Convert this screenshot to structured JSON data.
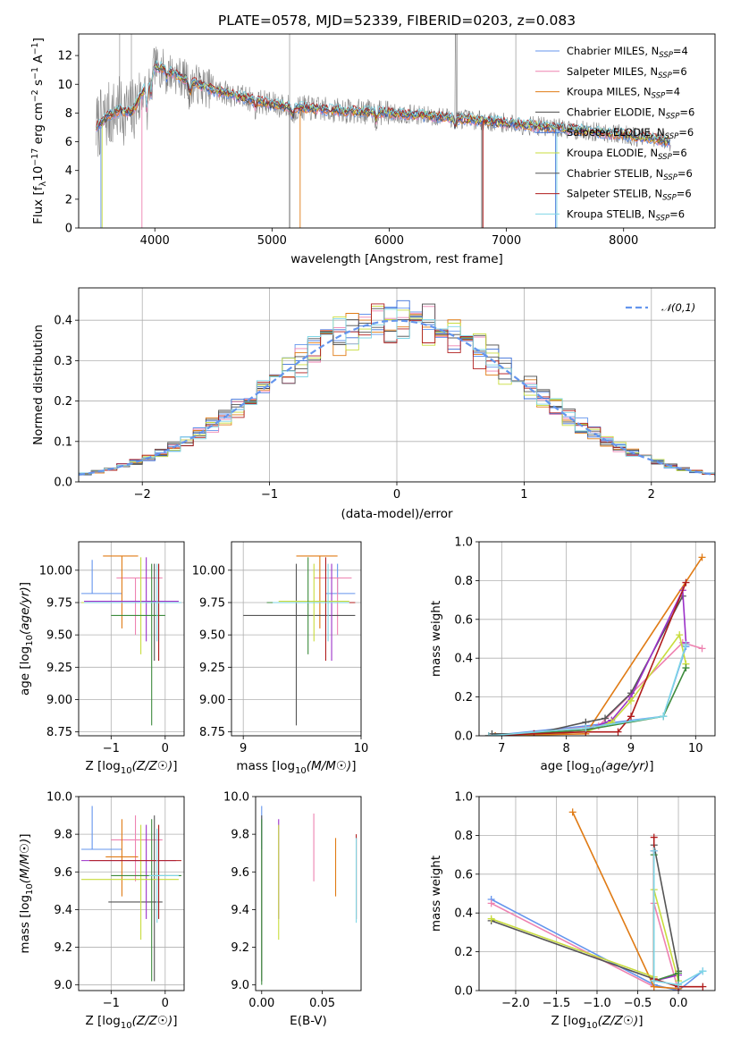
{
  "colors": {
    "series": [
      "#6495ed",
      "#ee82b0",
      "#e07b15",
      "#4a4a4a",
      "#3a6fd8",
      "#c8dc3c",
      "#555555",
      "#b01c1c",
      "#7fd6e6"
    ],
    "mcmc": [
      "#6495ed",
      "#ee82b0",
      "#e07b15",
      "#555555",
      "#9b30c8",
      "#c8dc3c",
      "#3d8b3d",
      "#b01c1c",
      "#7fd6e6"
    ],
    "data_spectrum": "#808080",
    "normal_curve": "#6495ed",
    "grid": "#b0b0b0"
  },
  "chart_data": [
    {
      "id": "spectrum",
      "type": "line",
      "title": "PLATE=0578, MJD=52339, FIBERID=0203, z=0.083",
      "xlabel": "wavelength [Angstrom, rest frame]",
      "ylabel_parts": [
        "Flux [f",
        "λ",
        "10",
        "−17",
        " erg cm",
        "−2",
        " s",
        "−1",
        " A",
        "−1",
        "]"
      ],
      "xlim": [
        3350,
        8780
      ],
      "ylim": [
        0,
        13.5
      ],
      "xticks": [
        4000,
        5000,
        6000,
        7000,
        8000
      ],
      "yticks": [
        0,
        2,
        4,
        6,
        8,
        10,
        12
      ],
      "grid": false,
      "legend_position": "top-right",
      "continuum_knots": {
        "x": [
          3500,
          3600,
          3700,
          3800,
          3900,
          4000,
          4100,
          4300,
          4500,
          4800,
          5000,
          5200,
          5500,
          6000,
          6500,
          7000,
          7500,
          8000,
          8400
        ],
        "y": [
          7.0,
          7.8,
          8.2,
          8.0,
          9.5,
          11.3,
          11.0,
          10.2,
          9.6,
          9.0,
          8.6,
          8.4,
          8.2,
          8.0,
          7.7,
          7.3,
          6.9,
          6.5,
          6.0
        ]
      },
      "series": [
        {
          "name": "Chabrier MILES",
          "nssp": "4"
        },
        {
          "name": "Salpeter MILES",
          "nssp": "6"
        },
        {
          "name": "Kroupa MILES",
          "nssp": "4"
        },
        {
          "name": "Chabrier ELODIE",
          "nssp": "6"
        },
        {
          "name": "Salpeter ELODIE",
          "nssp": "6"
        },
        {
          "name": "Kroupa ELODIE",
          "nssp": "6"
        },
        {
          "name": "Chabrier STELIB",
          "nssp": "6"
        },
        {
          "name": "Salpeter STELIB",
          "nssp": "6"
        },
        {
          "name": "Kroupa STELIB",
          "nssp": "6"
        }
      ],
      "legend_sub": "SSP"
    },
    {
      "id": "residual-hist",
      "type": "bar",
      "xlabel": "(data-model)/error",
      "ylabel": "Normed distribution",
      "xlim": [
        -2.5,
        2.5
      ],
      "ylim": [
        0,
        0.48
      ],
      "xticks": [
        -2,
        -1,
        0,
        1,
        2
      ],
      "yticks": [
        0.0,
        0.1,
        0.2,
        0.3,
        0.4
      ],
      "grid": true,
      "bin_width": 0.1,
      "legend": "N(0,1)",
      "legend_position": "top-right"
    },
    {
      "id": "age-vs-z",
      "type": "scatter",
      "xlabel": "Z [log10(Z/Z☉)]",
      "ylabel": "age  [log10(age/yr)]",
      "xlim": [
        -1.6,
        0.35
      ],
      "ylim": [
        8.72,
        10.22
      ],
      "xticks": [
        -1,
        0
      ],
      "yticks": [
        8.75,
        9.0,
        9.25,
        9.5,
        9.75,
        10.0
      ],
      "grid": true,
      "errorbars": [
        {
          "x": -1.35,
          "y": 9.82,
          "xl": -1.55,
          "xh": -0.8,
          "yl": 9.82,
          "yh": 10.08
        },
        {
          "x": -0.55,
          "y": 9.94,
          "xl": -0.9,
          "xh": -0.05,
          "yl": 9.5,
          "yh": 9.94
        },
        {
          "x": -0.8,
          "y": 10.11,
          "xl": -1.15,
          "xh": -0.5,
          "yl": 9.55,
          "yh": 10.11
        },
        {
          "x": -0.2,
          "y": 9.75,
          "xl": -1.5,
          "xh": 0.2,
          "yl": 9.3,
          "yh": 10.05
        },
        {
          "x": -0.35,
          "y": 9.76,
          "xl": -1.5,
          "xh": 0.25,
          "yl": 9.45,
          "yh": 10.1
        },
        {
          "x": -0.45,
          "y": 9.75,
          "xl": -1.55,
          "xh": 0.3,
          "yl": 9.35,
          "yh": 10.1
        },
        {
          "x": -0.25,
          "y": 9.65,
          "xl": -1.0,
          "xh": 0.0,
          "yl": 8.8,
          "yh": 10.05
        },
        {
          "x": -0.12,
          "y": 9.75,
          "xl": -1.4,
          "xh": 0.3,
          "yl": 9.3,
          "yh": 10.05
        },
        {
          "x": -0.15,
          "y": 9.75,
          "xl": -1.5,
          "xh": 0.3,
          "yl": 9.45,
          "yh": 10.05
        }
      ]
    },
    {
      "id": "age-vs-mass",
      "type": "scatter",
      "xlabel": "mass [log10(M/M☉)]",
      "xlim": [
        8.9,
        10.0
      ],
      "ylim": [
        8.72,
        10.22
      ],
      "xticks": [
        9,
        10
      ],
      "yticks": [
        8.75,
        9.0,
        9.25,
        9.5,
        9.75,
        10.0
      ],
      "grid": true,
      "errorbars": [
        {
          "x": 9.8,
          "y": 9.82,
          "xl": 9.7,
          "xh": 9.95,
          "yl": 9.82,
          "yh": 10.05
        },
        {
          "x": 9.8,
          "y": 9.94,
          "xl": 9.6,
          "xh": 9.92,
          "yl": 9.5,
          "yh": 9.94
        },
        {
          "x": 9.65,
          "y": 10.11,
          "xl": 9.45,
          "xh": 9.8,
          "yl": 9.55,
          "yh": 10.11
        },
        {
          "x": 9.45,
          "y": 9.65,
          "xl": 9.0,
          "xh": 9.95,
          "yl": 8.8,
          "yh": 10.05
        },
        {
          "x": 9.75,
          "y": 9.75,
          "xl": 9.2,
          "xh": 9.85,
          "yl": 9.3,
          "yh": 10.05
        },
        {
          "x": 9.6,
          "y": 9.76,
          "xl": 9.3,
          "xh": 9.9,
          "yl": 9.45,
          "yh": 10.05
        },
        {
          "x": 9.55,
          "y": 9.75,
          "xl": 9.2,
          "xh": 9.9,
          "yl": 9.35,
          "yh": 10.1
        },
        {
          "x": 9.7,
          "y": 9.75,
          "xl": 9.3,
          "xh": 9.95,
          "yl": 9.3,
          "yh": 10.1
        },
        {
          "x": 9.72,
          "y": 9.75,
          "xl": 9.25,
          "xh": 9.9,
          "yl": 9.45,
          "yh": 10.05
        }
      ]
    },
    {
      "id": "massweight-vs-age",
      "type": "line",
      "xlabel": "age  [log10(age/yr)]",
      "ylabel": "mass weight",
      "xlim": [
        6.65,
        10.3
      ],
      "ylim": [
        0,
        1.0
      ],
      "xticks": [
        7,
        8,
        9,
        10
      ],
      "yticks": [
        0.0,
        0.2,
        0.4,
        0.6,
        0.8,
        1.0
      ],
      "grid": true,
      "series": [
        {
          "x": [
            6.8,
            8.3,
            9.5,
            9.85
          ],
          "y": [
            0.0,
            0.05,
            0.1,
            0.46
          ]
        },
        {
          "x": [
            6.9,
            8.5,
            9.8,
            10.1
          ],
          "y": [
            0.0,
            0.05,
            0.48,
            0.45
          ]
        },
        {
          "x": [
            6.9,
            8.3,
            10.1
          ],
          "y": [
            0.0,
            0.01,
            0.92
          ]
        },
        {
          "x": [
            6.85,
            7.5,
            8.3,
            8.6,
            9.0,
            9.8
          ],
          "y": [
            0.01,
            0.01,
            0.07,
            0.09,
            0.22,
            0.72
          ]
        },
        {
          "x": [
            6.8,
            7.5,
            8.3,
            8.7,
            9.0,
            9.8,
            9.85
          ],
          "y": [
            0.0,
            0.01,
            0.03,
            0.08,
            0.2,
            0.75,
            0.48
          ]
        },
        {
          "x": [
            6.8,
            8.3,
            8.7,
            9.0,
            9.75,
            9.85
          ],
          "y": [
            0.0,
            0.02,
            0.07,
            0.18,
            0.52,
            0.37
          ]
        },
        {
          "x": [
            6.8,
            8.3,
            9.5,
            9.85
          ],
          "y": [
            0.0,
            0.03,
            0.1,
            0.35
          ]
        },
        {
          "x": [
            6.8,
            7.5,
            8.3,
            8.8,
            9.0,
            9.85
          ],
          "y": [
            0.0,
            0.01,
            0.02,
            0.02,
            0.1,
            0.79
          ]
        },
        {
          "x": [
            6.8,
            8.3,
            9.5,
            9.85
          ],
          "y": [
            0.0,
            0.04,
            0.1,
            0.47
          ]
        }
      ]
    },
    {
      "id": "mass-vs-z",
      "type": "scatter",
      "xlabel": "Z [log10(Z/Z☉)]",
      "ylabel": "mass [log10(M/M☉)]",
      "xlim": [
        -1.6,
        0.35
      ],
      "ylim": [
        8.97,
        10.0
      ],
      "xticks": [
        -1,
        0
      ],
      "yticks": [
        9.0,
        9.2,
        9.4,
        9.6,
        9.8,
        10.0
      ],
      "grid": true,
      "errorbars": [
        {
          "x": -1.35,
          "y": 9.72,
          "xl": -1.55,
          "xh": -0.8,
          "yl": 9.72,
          "yh": 9.95
        },
        {
          "x": -0.55,
          "y": 9.77,
          "xl": -1.0,
          "xh": -0.05,
          "yl": 9.55,
          "yh": 9.9
        },
        {
          "x": -0.8,
          "y": 9.68,
          "xl": -1.1,
          "xh": -0.5,
          "yl": 9.47,
          "yh": 9.88
        },
        {
          "x": -0.2,
          "y": 9.44,
          "xl": -1.05,
          "xh": -0.05,
          "yl": 9.02,
          "yh": 9.9
        },
        {
          "x": -0.35,
          "y": 9.66,
          "xl": -1.55,
          "xh": 0.2,
          "yl": 9.35,
          "yh": 9.85
        },
        {
          "x": -0.45,
          "y": 9.56,
          "xl": -1.55,
          "xh": 0.25,
          "yl": 9.24,
          "yh": 9.85
        },
        {
          "x": -0.25,
          "y": 9.58,
          "xl": -1.0,
          "xh": 0.3,
          "yl": 9.02,
          "yh": 9.88
        },
        {
          "x": -0.12,
          "y": 9.66,
          "xl": -1.4,
          "xh": 0.3,
          "yl": 9.35,
          "yh": 9.85
        },
        {
          "x": -0.15,
          "y": 9.58,
          "xl": -0.3,
          "xh": 0.25,
          "yl": 9.33,
          "yh": 9.83
        }
      ]
    },
    {
      "id": "mass-vs-ebv",
      "type": "scatter",
      "xlabel": "E(B-V)",
      "xlim": [
        -0.005,
        0.082
      ],
      "ylim": [
        8.97,
        10.0
      ],
      "xticks": [
        0.0,
        0.05
      ],
      "yticks": [
        9.0,
        9.2,
        9.4,
        9.6,
        9.8,
        10.0
      ],
      "grid": false,
      "errorbars": [
        {
          "x": 0.0,
          "y": 9.72,
          "xl": 0.0,
          "xh": 0.0,
          "yl": 9.72,
          "yh": 9.95
        },
        {
          "x": 0.043,
          "y": 9.77,
          "xl": 0.043,
          "xh": 0.043,
          "yl": 9.55,
          "yh": 9.91
        },
        {
          "x": 0.061,
          "y": 9.68,
          "xl": 0.061,
          "xh": 0.061,
          "yl": 9.47,
          "yh": 9.78
        },
        {
          "x": 0.0,
          "y": 9.44,
          "xl": 0.0,
          "xh": 0.0,
          "yl": 9.02,
          "yh": 9.9
        },
        {
          "x": 0.014,
          "y": 9.66,
          "xl": 0.014,
          "xh": 0.014,
          "yl": 9.35,
          "yh": 9.88
        },
        {
          "x": 0.014,
          "y": 9.56,
          "xl": 0.014,
          "xh": 0.014,
          "yl": 9.24,
          "yh": 9.85
        },
        {
          "x": 0.0,
          "y": 9.58,
          "xl": 0.0,
          "xh": 0.0,
          "yl": 9.0,
          "yh": 9.88
        },
        {
          "x": 0.078,
          "y": 9.66,
          "xl": 0.078,
          "xh": 0.078,
          "yl": 9.35,
          "yh": 9.8
        },
        {
          "x": 0.078,
          "y": 9.58,
          "xl": 0.078,
          "xh": 0.078,
          "yl": 9.33,
          "yh": 9.78
        }
      ]
    },
    {
      "id": "massweight-vs-z",
      "type": "line",
      "xlabel": "Z [log10(Z/Z☉)]",
      "ylabel": "mass weight",
      "xlim": [
        -2.45,
        0.45
      ],
      "ylim": [
        0,
        1.0
      ],
      "xticks": [
        -2.0,
        -1.5,
        -1.0,
        -0.5,
        0.0
      ],
      "yticks": [
        0.0,
        0.2,
        0.4,
        0.6,
        0.8,
        1.0
      ],
      "grid": true,
      "series": [
        {
          "x": [
            -2.3,
            -0.3,
            0.0,
            0.3
          ],
          "y": [
            0.47,
            0.03,
            0.0,
            0.1
          ]
        },
        {
          "x": [
            -2.3,
            -0.3,
            -0.3,
            0.0
          ],
          "y": [
            0.45,
            0.02,
            0.45,
            0.0
          ]
        },
        {
          "x": [
            -1.3,
            -0.3,
            0.0
          ],
          "y": [
            0.92,
            0.02,
            0.01
          ]
        },
        {
          "x": [
            -2.3,
            -0.3,
            -0.3,
            0.0,
            0.0
          ],
          "y": [
            0.36,
            0.06,
            0.75,
            0.1,
            0.02
          ]
        },
        {
          "x": [
            -0.3,
            -0.3,
            0.0,
            0.0
          ],
          "y": [
            0.72,
            0.05,
            0.08,
            0.02
          ]
        },
        {
          "x": [
            -2.3,
            -0.3,
            -0.3,
            0.0
          ],
          "y": [
            0.37,
            0.07,
            0.52,
            0.05
          ]
        },
        {
          "x": [
            -0.3,
            -0.3,
            0.0,
            0.0
          ],
          "y": [
            0.7,
            0.05,
            0.09,
            0.03
          ]
        },
        {
          "x": [
            -0.3,
            -0.3,
            0.0,
            0.3
          ],
          "y": [
            0.79,
            0.06,
            0.02,
            0.02
          ]
        },
        {
          "x": [
            -0.3,
            -0.3,
            0.0,
            0.3
          ],
          "y": [
            0.72,
            0.05,
            0.03,
            0.1
          ]
        }
      ]
    }
  ]
}
